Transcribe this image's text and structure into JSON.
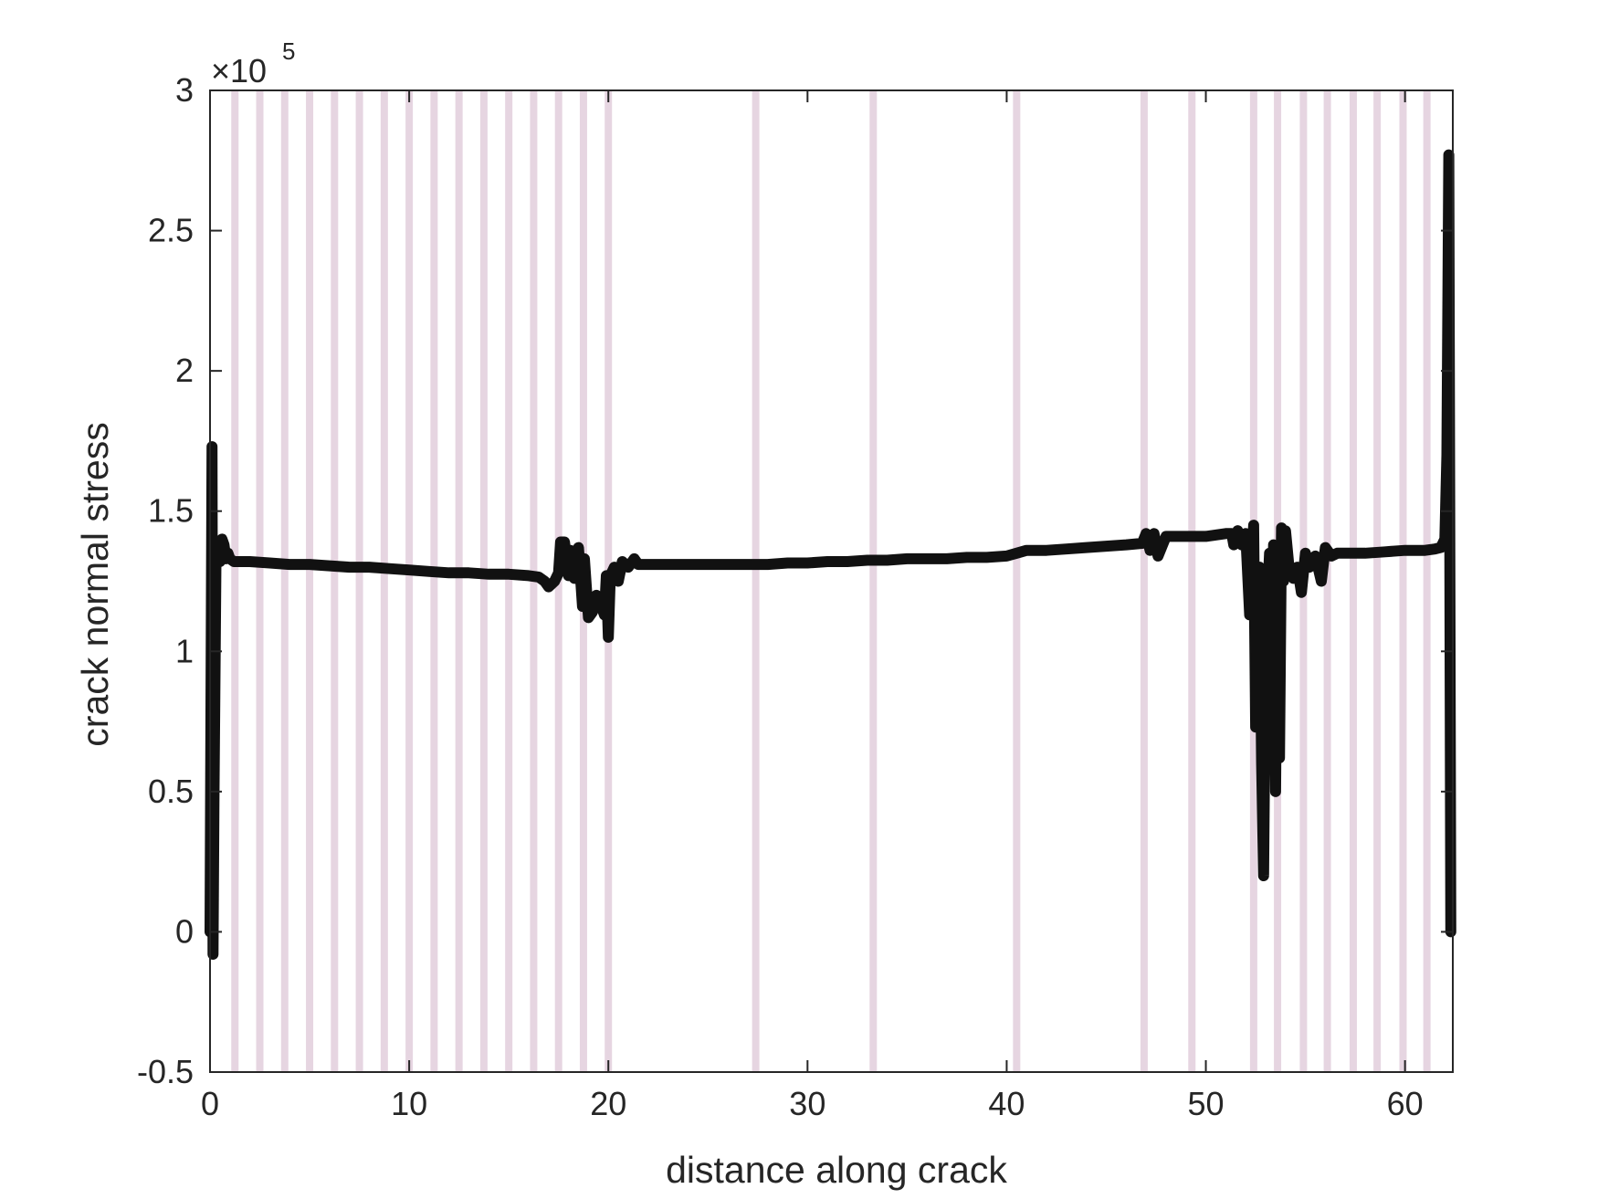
{
  "chart_data": {
    "type": "line",
    "title": "",
    "xlabel": "distance along crack",
    "ylabel": "crack normal stress",
    "xlim": [
      0,
      62.4
    ],
    "ylim": [
      -0.5,
      3
    ],
    "xticks": [
      0,
      10,
      20,
      30,
      40,
      50,
      60
    ],
    "xtick_labels": [
      "0",
      "10",
      "20",
      "30",
      "40",
      "50",
      "60"
    ],
    "yticks": [
      -0.5,
      0,
      0.5,
      1,
      1.5,
      2,
      2.5,
      3
    ],
    "ytick_labels": [
      "-0.5",
      "0",
      "0.5",
      "1",
      "1.5",
      "2",
      "2.5",
      "3"
    ],
    "y_multiplier": {
      "base": "×10",
      "exponent": "5"
    },
    "grid": false,
    "legend": "none",
    "colors": {
      "line": "#111111",
      "bands": "#e6d5e1",
      "axes": "#262626"
    },
    "vertical_bands_x": [
      1.25,
      2.5,
      3.75,
      5.0,
      6.25,
      7.5,
      8.75,
      10.0,
      11.25,
      12.5,
      13.75,
      15.0,
      16.25,
      17.5,
      18.75,
      20.0,
      27.4,
      33.3,
      40.5,
      46.9,
      49.3,
      52.4,
      53.6,
      54.9,
      56.1,
      57.4,
      58.6,
      59.9,
      61.1
    ],
    "series": [
      {
        "x": [
          0,
          0.1,
          0.15,
          0.2,
          0.3,
          0.4,
          0.5,
          0.6,
          0.7,
          0.8,
          0.9,
          1.0,
          1.2,
          1.5,
          2,
          3,
          4,
          5,
          6,
          7,
          8,
          9,
          10,
          11,
          12,
          13,
          14,
          15,
          16,
          16.5,
          16.8,
          17.0,
          17.3,
          17.5,
          17.6,
          17.8,
          18.0,
          18.1,
          18.3,
          18.5,
          18.7,
          18.8,
          19.0,
          19.2,
          19.4,
          19.6,
          19.8,
          19.9,
          20.0,
          20.1,
          20.3,
          20.5,
          20.7,
          21.0,
          21.3,
          21.5,
          22,
          23,
          24,
          25,
          26,
          27,
          28,
          29,
          30,
          31,
          32,
          33,
          34,
          35,
          36,
          37,
          38,
          39,
          40,
          40.5,
          41,
          42,
          43,
          44,
          45,
          46,
          46.8,
          47.0,
          47.2,
          47.4,
          47.6,
          48,
          49,
          50,
          51,
          51.3,
          51.4,
          51.6,
          51.8,
          52.0,
          52.2,
          52.4,
          52.5,
          52.6,
          52.7,
          52.8,
          52.9,
          53.0,
          53.2,
          53.3,
          53.4,
          53.5,
          53.6,
          53.7,
          53.8,
          53.9,
          54.0,
          54.2,
          54.4,
          54.6,
          54.8,
          55.0,
          55.2,
          55.5,
          55.8,
          56.0,
          56.3,
          56.6,
          57,
          58,
          59,
          60,
          61,
          61.5,
          61.8,
          62.0,
          62.1,
          62.2,
          62.3
        ],
        "y": [
          0,
          1.73,
          -0.08,
          0.5,
          1.32,
          1.33,
          1.32,
          1.4,
          1.38,
          1.33,
          1.35,
          1.33,
          1.32,
          1.32,
          1.32,
          1.315,
          1.31,
          1.31,
          1.305,
          1.3,
          1.3,
          1.295,
          1.29,
          1.285,
          1.28,
          1.28,
          1.275,
          1.275,
          1.27,
          1.265,
          1.25,
          1.23,
          1.25,
          1.28,
          1.39,
          1.39,
          1.27,
          1.36,
          1.26,
          1.37,
          1.16,
          1.33,
          1.12,
          1.14,
          1.2,
          1.17,
          1.13,
          1.27,
          1.05,
          1.27,
          1.3,
          1.25,
          1.32,
          1.3,
          1.33,
          1.31,
          1.31,
          1.31,
          1.31,
          1.31,
          1.31,
          1.31,
          1.31,
          1.315,
          1.315,
          1.32,
          1.32,
          1.325,
          1.325,
          1.33,
          1.33,
          1.33,
          1.335,
          1.335,
          1.34,
          1.35,
          1.36,
          1.36,
          1.365,
          1.37,
          1.375,
          1.38,
          1.385,
          1.42,
          1.36,
          1.42,
          1.34,
          1.41,
          1.41,
          1.41,
          1.42,
          1.42,
          1.38,
          1.43,
          1.38,
          1.42,
          1.13,
          1.45,
          0.73,
          1.2,
          1.3,
          0.6,
          0.2,
          1.05,
          1.35,
          0.6,
          1.38,
          0.5,
          1.34,
          0.62,
          1.44,
          1.25,
          1.43,
          1.28,
          1.26,
          1.3,
          1.21,
          1.35,
          1.3,
          1.34,
          1.25,
          1.37,
          1.34,
          1.35,
          1.35,
          1.35,
          1.355,
          1.36,
          1.36,
          1.365,
          1.37,
          1.4,
          1.7,
          2.77,
          0
        ]
      }
    ]
  }
}
